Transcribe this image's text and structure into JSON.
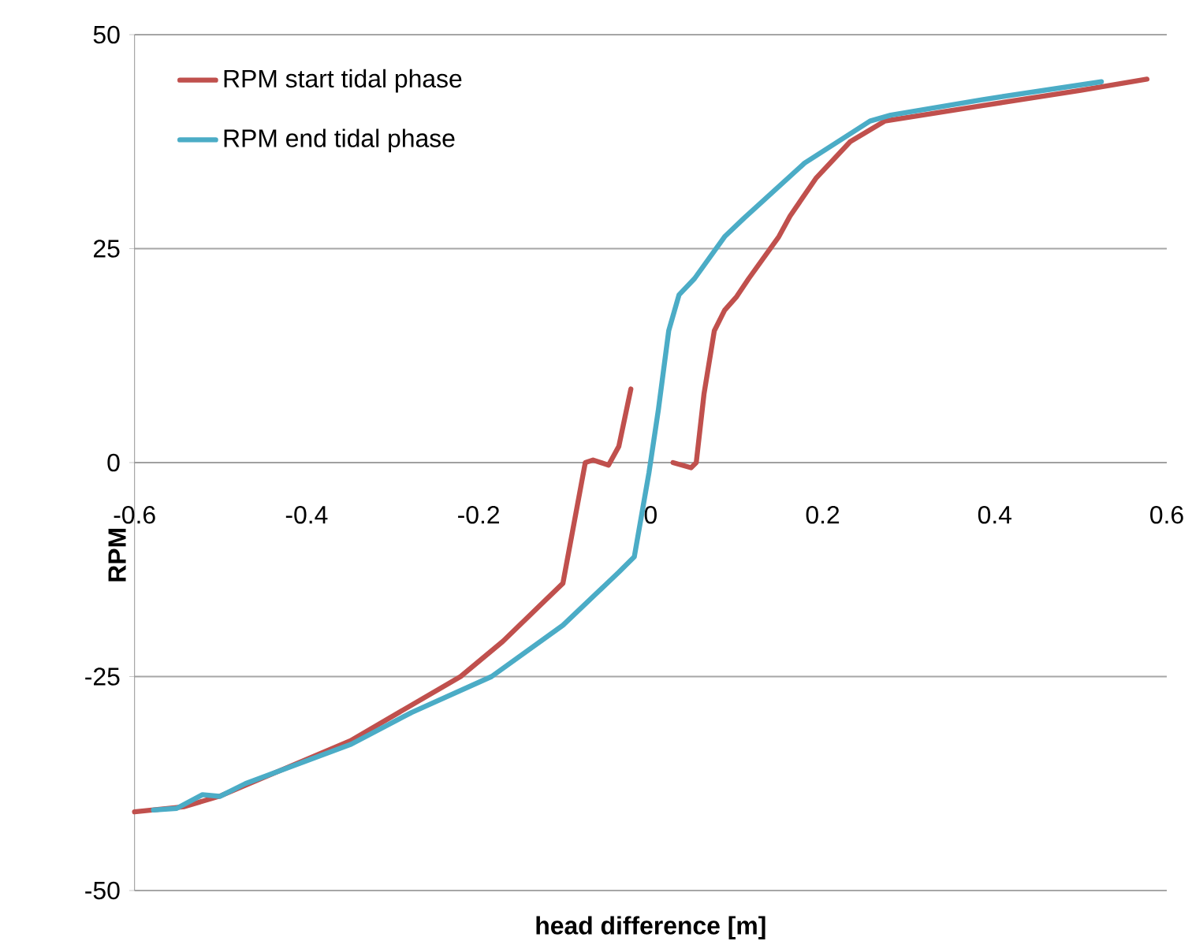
{
  "chart_data": {
    "type": "line",
    "xlabel": "head difference [m]",
    "ylabel": "RPM",
    "xlim": [
      -0.6,
      0.6
    ],
    "ylim": [
      -50,
      50
    ],
    "xticks": [
      -0.6,
      -0.4,
      -0.2,
      0,
      0.2,
      0.4,
      0.6
    ],
    "yticks": [
      -50,
      -25,
      0,
      25,
      50
    ],
    "grid": "y",
    "legend": "top left",
    "series": [
      {
        "name": "RPM start tidal phase",
        "color": "#c0504d",
        "x": [
          -0.6,
          -0.542,
          -0.499,
          -0.349,
          -0.221,
          -0.172,
          -0.102,
          -0.076,
          -0.067,
          -0.049,
          -0.037,
          -0.023,
          null,
          0.026,
          0.047,
          0.053,
          0.062,
          0.074,
          0.086,
          0.1,
          0.114,
          0.149,
          0.162,
          0.192,
          0.232,
          0.272,
          0.385,
          0.5,
          0.577
        ],
        "values": [
          -40.8,
          -40.2,
          -38.9,
          -32.5,
          -25,
          -20.9,
          -14.1,
          0,
          0.3,
          -0.3,
          1.9,
          8.6,
          null,
          0,
          -0.6,
          0,
          8,
          15.4,
          17.8,
          19.4,
          21.5,
          26.4,
          28.8,
          33.2,
          37.5,
          39.9,
          41.7,
          43.5,
          44.8
        ]
      },
      {
        "name": "RPM end tidal phase",
        "color": "#4bacc6",
        "x": [
          -0.578,
          -0.551,
          -0.521,
          -0.501,
          -0.471,
          -0.348,
          -0.278,
          -0.185,
          -0.102,
          -0.037,
          -0.019,
          -0.002,
          0.009,
          0.021,
          0.033,
          0.051,
          0.086,
          0.109,
          0.179,
          0.255,
          0.279,
          0.385,
          0.524
        ],
        "values": [
          -40.6,
          -40.4,
          -38.8,
          -39,
          -37.5,
          -32.9,
          -29.2,
          -25,
          -19,
          -12.8,
          -11,
          -1.2,
          6.2,
          15.4,
          19.6,
          21.5,
          26.4,
          28.6,
          35,
          39.9,
          40.6,
          42.4,
          44.5
        ]
      }
    ]
  }
}
